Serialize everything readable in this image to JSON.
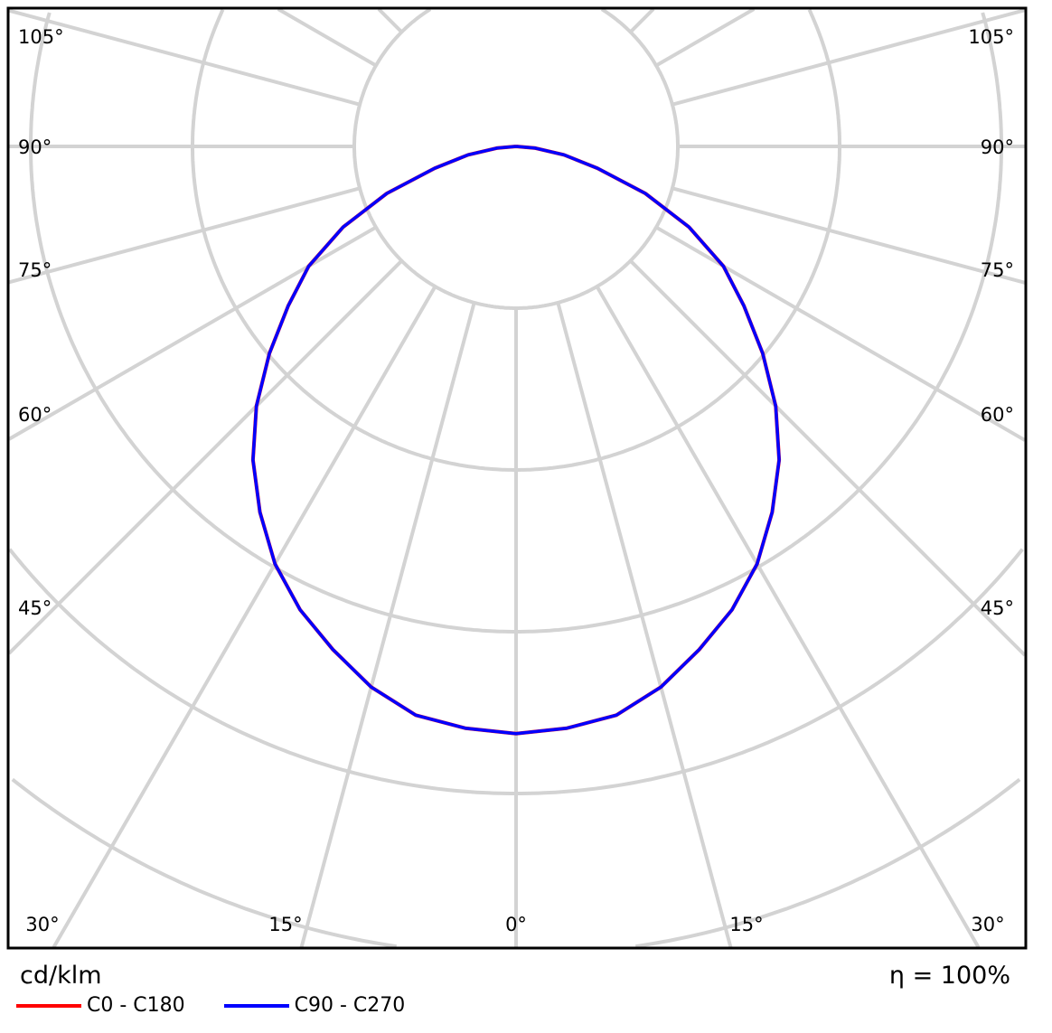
{
  "chart_data": {
    "type": "polar",
    "unit": "cd/klm",
    "efficiency_label": "η = 100%",
    "angle_labels": {
      "left": [
        "105°",
        "90°",
        "75°",
        "60°",
        "45°"
      ],
      "right": [
        "105°",
        "90°",
        "75°",
        "60°",
        "45°"
      ],
      "bottom": [
        "30°",
        "15°",
        "0°",
        "15°",
        "30°"
      ]
    },
    "angle_grid_step_deg": 15,
    "grid": true,
    "radial_ring_values": [
      100,
      200,
      300,
      400,
      500
    ],
    "gamma_deg": [
      0,
      5,
      10,
      15,
      20,
      25,
      30,
      35,
      40,
      45,
      50,
      55,
      60,
      65,
      70,
      75,
      80,
      85,
      90
    ],
    "series": [
      {
        "name": "C0 - C180",
        "color": "#ff0000",
        "values": [
          363,
          361,
          357,
          346,
          331,
          316,
          298,
          276,
          253,
          227,
          199,
          172,
          148,
          118,
          85,
          52,
          30,
          12,
          0
        ]
      },
      {
        "name": "C90 - C270",
        "color": "#0000ff",
        "values": [
          363,
          361,
          357,
          346,
          331,
          316,
          298,
          276,
          253,
          227,
          199,
          172,
          148,
          118,
          85,
          52,
          30,
          12,
          0
        ]
      }
    ],
    "legend_placement": "bottom-left"
  }
}
